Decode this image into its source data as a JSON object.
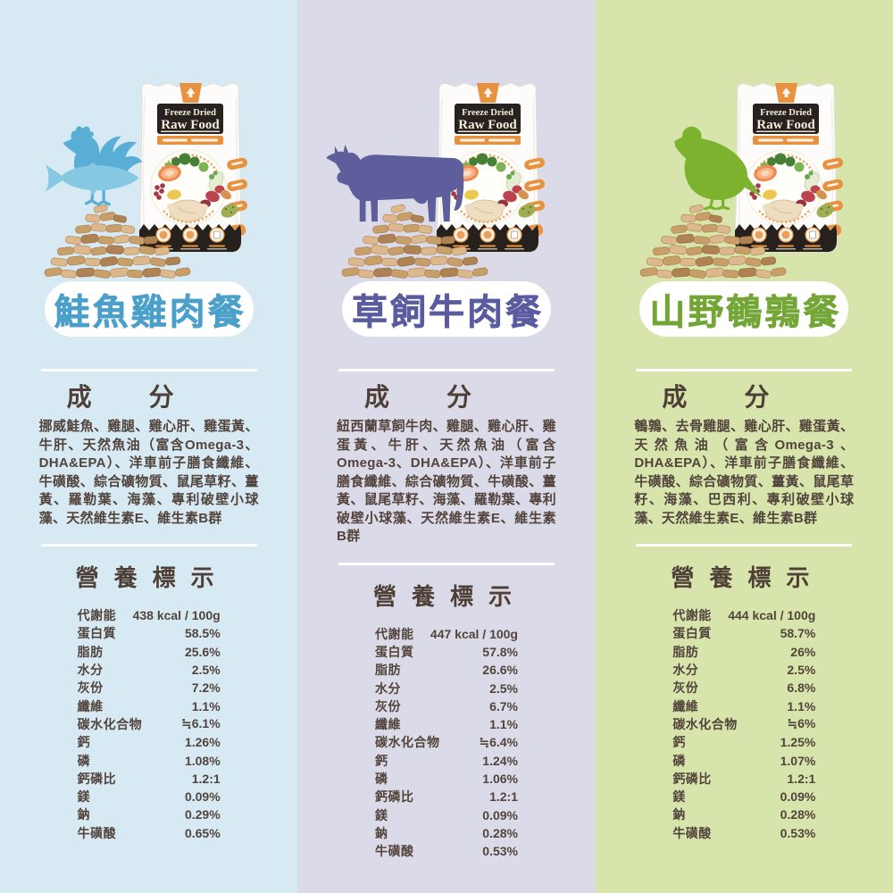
{
  "bag": {
    "brand_line1": "Freeze Dried",
    "brand_line2": "Raw Food",
    "accent_color": "#e8923f"
  },
  "sections": {
    "ingredients_heading": "成分",
    "nutrition_heading": "營養標示"
  },
  "products": [
    {
      "title": "鮭魚雞肉餐",
      "title_color": "#4ba0c9",
      "background_color": "#d7eaf3",
      "animal": "chicken-and-salmon",
      "silhouette_color": "#58aed5",
      "silhouette_secondary_color": "#86c8e2",
      "ingredients": "挪威鮭魚、雞腿、雞心肝、雞蛋黃、牛肝、天然魚油（富含Omega-3、DHA&EPA）、洋車前子膳食纖維、牛磺酸、綜合礦物質、鼠尾草籽、薑黃、羅勒葉、海藻、專利破壁小球藻、天然維生素E、維生素B群",
      "nutrition": [
        {
          "label": "代謝能",
          "value": "438 kcal / 100g"
        },
        {
          "label": "蛋白質",
          "value": "58.5%"
        },
        {
          "label": "脂肪",
          "value": "25.6%"
        },
        {
          "label": "水分",
          "value": "2.5%"
        },
        {
          "label": "灰份",
          "value": "7.2%"
        },
        {
          "label": "纖維",
          "value": "1.1%"
        },
        {
          "label": "碳水化合物",
          "value": "≒6.1%"
        },
        {
          "label": "鈣",
          "value": "1.26%"
        },
        {
          "label": "磷",
          "value": "1.08%"
        },
        {
          "label": "鈣磷比",
          "value": "1.2:1"
        },
        {
          "label": "鎂",
          "value": "0.09%"
        },
        {
          "label": "鈉",
          "value": "0.29%"
        },
        {
          "label": "牛磺酸",
          "value": "0.65%"
        }
      ]
    },
    {
      "title": "草飼牛肉餐",
      "title_color": "#5b5ba0",
      "background_color": "#dbdae8",
      "animal": "cow",
      "silhouette_color": "#5d5e9b",
      "ingredients": "紐西蘭草飼牛肉、雞腿、雞心肝、雞蛋黃、牛肝、天然魚油（富含Omega-3、DHA&EPA）、洋車前子膳食纖維、綜合礦物質、牛磺酸、薑黃、鼠尾草籽、海藻、羅勒葉、專利破壁小球藻、天然維生素E、維生素B群",
      "nutrition": [
        {
          "label": "代謝能",
          "value": "447 kcal / 100g"
        },
        {
          "label": "蛋白質",
          "value": "57.8%"
        },
        {
          "label": "脂肪",
          "value": "26.6%"
        },
        {
          "label": "水分",
          "value": "2.5%"
        },
        {
          "label": "灰份",
          "value": "6.7%"
        },
        {
          "label": "纖維",
          "value": "1.1%"
        },
        {
          "label": "碳水化合物",
          "value": "≒6.4%"
        },
        {
          "label": "鈣",
          "value": "1.24%"
        },
        {
          "label": "磷",
          "value": "1.06%"
        },
        {
          "label": "鈣磷比",
          "value": "1.2:1"
        },
        {
          "label": "鎂",
          "value": "0.09%"
        },
        {
          "label": "鈉",
          "value": "0.28%"
        },
        {
          "label": "牛磺酸",
          "value": "0.53%"
        }
      ]
    },
    {
      "title": "山野鵪鶉餐",
      "title_color": "#74a637",
      "background_color": "#d7e5ac",
      "animal": "quail",
      "silhouette_color": "#7db22f",
      "ingredients": "鵪鶉、去骨雞腿、雞心肝、雞蛋黃、天然魚油（富含Omega-3、DHA&EPA）、洋車前子膳食纖維、牛磺酸、綜合礦物質、薑黃、鼠尾草籽、海藻、巴西利、專利破壁小球藻、天然維生素E、維生素B群",
      "nutrition": [
        {
          "label": "代謝能",
          "value": "444 kcal / 100g"
        },
        {
          "label": "蛋白質",
          "value": "58.7%"
        },
        {
          "label": "脂肪",
          "value": "26%"
        },
        {
          "label": "水分",
          "value": "2.5%"
        },
        {
          "label": "灰份",
          "value": "6.8%"
        },
        {
          "label": "纖維",
          "value": "1.1%"
        },
        {
          "label": "碳水化合物",
          "value": "≒6%"
        },
        {
          "label": "鈣",
          "value": "1.25%"
        },
        {
          "label": "磷",
          "value": "1.07%"
        },
        {
          "label": "鈣磷比",
          "value": "1.2:1"
        },
        {
          "label": "鎂",
          "value": "0.09%"
        },
        {
          "label": "鈉",
          "value": "0.28%"
        },
        {
          "label": "牛磺酸",
          "value": "0.53%"
        }
      ]
    }
  ]
}
